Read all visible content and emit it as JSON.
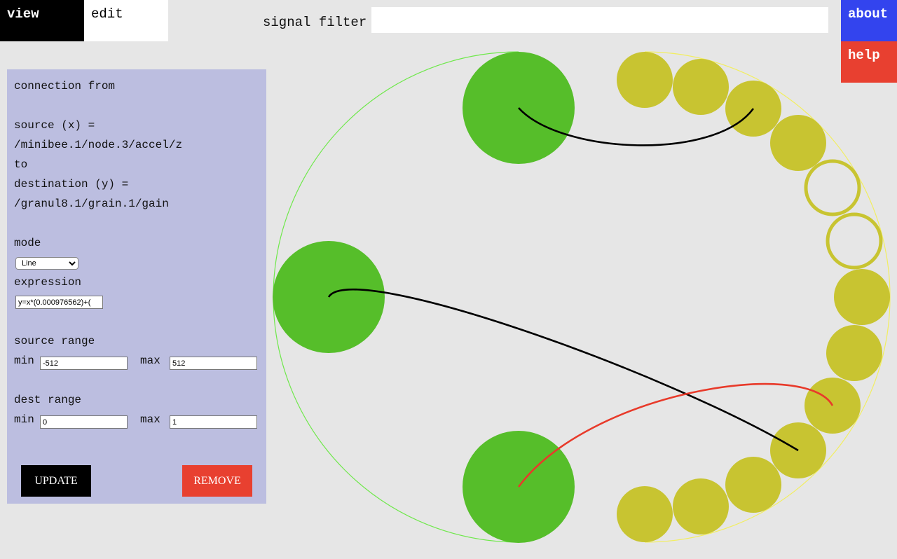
{
  "tabs": {
    "view": "view",
    "edit": "edit"
  },
  "filter": {
    "label": "signal filter",
    "value": ""
  },
  "buttons": {
    "about": "about",
    "help": "help"
  },
  "panel": {
    "connection_from": "connection from",
    "source_label": "source (x) =",
    "source_path": "/minibee.1/node.3/accel/z",
    "to_label": "to",
    "dest_label": "destination (y) =",
    "dest_path": "/granul8.1/grain.1/gain",
    "mode_label": "mode",
    "mode_value": "Line",
    "expression_label": "expression",
    "expression_value": "y=x*(0.000976562)+(",
    "source_range_label": "source range",
    "dest_range_label": "dest range",
    "min_label": "min",
    "max_label": "max",
    "src_min": "-512",
    "src_max": "512",
    "dst_min": "0",
    "dst_max": "1",
    "update_label": "UPDATE",
    "remove_label": "REMOVE"
  },
  "colors": {
    "source_node": "#56be2a",
    "dest_node": "#c8c431",
    "source_ring": "#6ee84a",
    "dest_ring": "#f2ee60",
    "connection": "#000000",
    "selected_connection": "#e83a2a"
  }
}
